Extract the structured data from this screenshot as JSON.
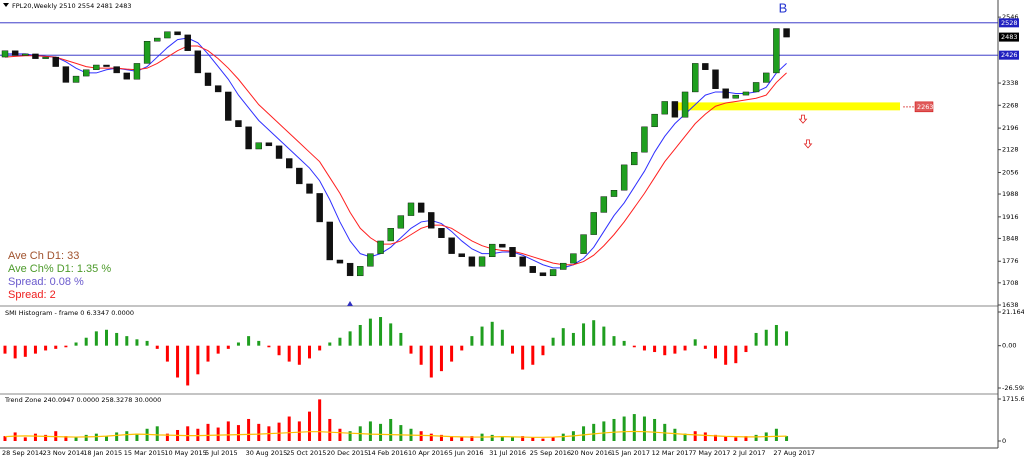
{
  "chart_data": [
    {
      "type": "candlestick",
      "title": "FPL20,Weekly  2510 2554 2481 2483",
      "categories": [
        "28 Sep 2014",
        null,
        null,
        null,
        "23 Nov 2014",
        null,
        null,
        null,
        "18 Jan 2015",
        null,
        null,
        null,
        "15 Mar 2015",
        null,
        null,
        null,
        "10 May 2015",
        null,
        null,
        null,
        "5 Jul 2015",
        null,
        null,
        null,
        "30 Aug 2015",
        null,
        null,
        null,
        "25 Oct 2015",
        null,
        null,
        null,
        "20 Dec 2015",
        null,
        null,
        null,
        "14 Feb 2016",
        null,
        null,
        null,
        "10 Apr 2016",
        null,
        null,
        null,
        "5 Jun 2016",
        null,
        null,
        null,
        "31 Jul 2016",
        null,
        null,
        null,
        "25 Sep 2016",
        null,
        null,
        null,
        "20 Nov 2016",
        null,
        null,
        null,
        "15 Jan 2017",
        null,
        null,
        null,
        "12 Mar 2017",
        null,
        null,
        null,
        "7 May 2017",
        null,
        null,
        null,
        "2 Jul 2017",
        null,
        null,
        null,
        "27 Aug 2017",
        null
      ],
      "open": [
        2420,
        2440,
        2425,
        2430,
        2415,
        2420,
        2390,
        2340,
        2360,
        2380,
        2395,
        2390,
        2370,
        2350,
        2400,
        2470,
        2480,
        2500,
        2490,
        2440,
        2370,
        2330,
        2310,
        2220,
        2200,
        2130,
        2150,
        2140,
        2100,
        2070,
        2020,
        1990,
        1900,
        1780,
        1770,
        1730,
        1760,
        1800,
        1840,
        1880,
        1920,
        1960,
        1930,
        1880,
        1850,
        1800,
        1790,
        1760,
        1790,
        1830,
        1820,
        1790,
        1760,
        1740,
        1730,
        1750,
        1770,
        1800,
        1860,
        1930,
        1980,
        2000,
        2080,
        2120,
        2200,
        2240,
        2280,
        2230,
        2310,
        2400,
        2380,
        2320,
        2290,
        2300,
        2310,
        2340,
        2370,
        2510
      ],
      "close": [
        2440,
        2425,
        2430,
        2415,
        2420,
        2390,
        2340,
        2360,
        2380,
        2395,
        2390,
        2370,
        2350,
        2400,
        2470,
        2480,
        2500,
        2490,
        2440,
        2370,
        2330,
        2310,
        2220,
        2200,
        2130,
        2150,
        2140,
        2100,
        2070,
        2020,
        1990,
        1900,
        1780,
        1770,
        1730,
        1760,
        1800,
        1840,
        1880,
        1920,
        1960,
        1930,
        1880,
        1850,
        1800,
        1790,
        1760,
        1790,
        1830,
        1820,
        1790,
        1760,
        1740,
        1730,
        1750,
        1770,
        1800,
        1860,
        1930,
        1980,
        2000,
        2080,
        2120,
        2200,
        2240,
        2280,
        2230,
        2310,
        2400,
        2380,
        2320,
        2290,
        2300,
        2310,
        2340,
        2370,
        2510,
        2483
      ],
      "up_color": "#1f9e1f",
      "down_color": "#111111",
      "lines": [
        {
          "color": "#3030ff",
          "values": [
            2430,
            2430,
            2430,
            2425,
            2422,
            2420,
            2405,
            2385,
            2370,
            2370,
            2380,
            2385,
            2380,
            2375,
            2390,
            2420,
            2450,
            2475,
            2480,
            2465,
            2430,
            2390,
            2350,
            2300,
            2260,
            2220,
            2190,
            2160,
            2130,
            2100,
            2070,
            2030,
            1970,
            1900,
            1840,
            1800,
            1790,
            1800,
            1820,
            1850,
            1880,
            1900,
            1905,
            1895,
            1870,
            1840,
            1815,
            1800,
            1800,
            1805,
            1805,
            1795,
            1780,
            1765,
            1755,
            1755,
            1765,
            1785,
            1820,
            1870,
            1920,
            1960,
            2010,
            2060,
            2120,
            2170,
            2210,
            2240,
            2270,
            2300,
            2310,
            2310,
            2305,
            2305,
            2310,
            2325,
            2370,
            2400
          ]
        },
        {
          "color": "#ff2020",
          "values": [
            2420,
            2422,
            2424,
            2424,
            2422,
            2420,
            2410,
            2400,
            2390,
            2385,
            2385,
            2385,
            2382,
            2380,
            2385,
            2400,
            2420,
            2440,
            2455,
            2455,
            2440,
            2415,
            2385,
            2350,
            2310,
            2270,
            2240,
            2210,
            2180,
            2150,
            2120,
            2090,
            2040,
            1990,
            1930,
            1880,
            1850,
            1830,
            1830,
            1840,
            1860,
            1880,
            1890,
            1890,
            1880,
            1860,
            1840,
            1825,
            1815,
            1810,
            1808,
            1800,
            1790,
            1780,
            1770,
            1765,
            1765,
            1775,
            1795,
            1825,
            1860,
            1900,
            1945,
            1990,
            2040,
            2090,
            2130,
            2170,
            2210,
            2240,
            2265,
            2275,
            2280,
            2285,
            2290,
            2300,
            2340,
            2370
          ]
        }
      ],
      "hlines": [
        {
          "value": 2528,
          "color": "#2020c0"
        },
        {
          "value": 2426,
          "color": "#2020c0"
        }
      ],
      "zone": {
        "low": 2252,
        "high": 2277,
        "label": 2263,
        "color": "#ffff00",
        "label_color": "#e05a5a"
      },
      "signals": [
        2221,
        2143
      ],
      "annotation": "B",
      "info": [
        {
          "text": "Ave Ch D1: 33",
          "color": "#a0522d"
        },
        {
          "text": "Ave Ch% D1: 1.35 %",
          "color": "#4c9a2a"
        },
        {
          "text": "Spread: 0.08 %",
          "color": "#6a5acd"
        },
        {
          "text": "Spread: 2",
          "color": "#ee2020"
        }
      ],
      "ylim": [
        1638,
        2600
      ],
      "yticks": [
        2546,
        2338,
        2268,
        2196,
        2128,
        2056,
        1988,
        1916,
        1848,
        1776,
        1708,
        1638
      ]
    },
    {
      "type": "bar",
      "title": "SMI Histogram - frame 0 6.3347 0.0000",
      "values": [
        -5,
        -8,
        -7,
        -5,
        -3,
        -2,
        -1,
        2,
        5,
        9,
        10,
        8,
        6,
        4,
        3,
        -2,
        -10,
        -20,
        -25,
        -18,
        -10,
        -5,
        -2,
        2,
        6,
        3,
        -1,
        -6,
        -10,
        -12,
        -8,
        -3,
        2,
        5,
        9,
        13,
        17,
        18,
        14,
        8,
        -5,
        -12,
        -20,
        -16,
        -10,
        -3,
        6,
        12,
        15,
        10,
        -5,
        -15,
        -12,
        -6,
        5,
        11,
        8,
        14,
        16,
        12,
        6,
        3,
        -1,
        -3,
        -4,
        -6,
        -5,
        -3,
        4,
        -2,
        -8,
        -12,
        -11,
        -4,
        8,
        10,
        13,
        9
      ],
      "pos_color": "#1f9e1f",
      "neg_color": "#ff0000",
      "ylim": [
        -26.5988,
        21.1645
      ],
      "yticks": [
        21.1645,
        {
          "value": 0,
          "label": "0.00"
        },
        -26.5988
      ]
    },
    {
      "type": "bar",
      "title": "Trend Zone 240.0947 0.0000 258.3278 30.0000",
      "series": [
        {
          "color": "#1f9e1f",
          "values": [
            null,
            null,
            null,
            null,
            null,
            null,
            null,
            150,
            250,
            300,
            200,
            350,
            400,
            300,
            500,
            600,
            null,
            null,
            null,
            null,
            null,
            null,
            null,
            null,
            null,
            null,
            null,
            null,
            null,
            null,
            null,
            null,
            null,
            null,
            400,
            600,
            800,
            700,
            900,
            650,
            500,
            null,
            null,
            null,
            null,
            null,
            null,
            300,
            250,
            200,
            150,
            null,
            null,
            null,
            null,
            300,
            400,
            600,
            700,
            800,
            900,
            1000,
            1100,
            1000,
            900,
            700,
            500,
            300,
            null,
            null,
            null,
            null,
            null,
            null,
            250,
            350,
            500,
            200
          ]
        },
        {
          "color": "#ff0000",
          "values": [
            200,
            350,
            150,
            300,
            250,
            400,
            200,
            null,
            null,
            null,
            null,
            null,
            null,
            null,
            null,
            null,
            300,
            450,
            600,
            500,
            700,
            550,
            800,
            650,
            900,
            700,
            600,
            750,
            1000,
            800,
            1200,
            1700,
            900,
            500,
            null,
            null,
            null,
            null,
            null,
            null,
            null,
            400,
            300,
            250,
            200,
            150,
            200,
            null,
            null,
            null,
            null,
            200,
            150,
            100,
            150,
            null,
            null,
            null,
            null,
            null,
            null,
            null,
            null,
            null,
            null,
            null,
            null,
            null,
            400,
            350,
            250,
            200,
            150,
            200,
            null,
            null,
            null,
            null
          ]
        },
        {
          "color": "#ffc000",
          "type": "line",
          "values": [
            180,
            200,
            210,
            200,
            190,
            180,
            170,
            160,
            170,
            180,
            200,
            230,
            260,
            280,
            270,
            250,
            240,
            230,
            220,
            220,
            230,
            240,
            250,
            260,
            270,
            280,
            300,
            320,
            340,
            360,
            380,
            380,
            360,
            340,
            320,
            300,
            280,
            270,
            260,
            250,
            240,
            230,
            220,
            200,
            180,
            170,
            160,
            160,
            170,
            180,
            170,
            160,
            150,
            150,
            160,
            180,
            210,
            250,
            290,
            330,
            360,
            380,
            390,
            380,
            360,
            330,
            300,
            270,
            250,
            230,
            210,
            190,
            180,
            170,
            170,
            180,
            190,
            200
          ]
        }
      ],
      "ylim": [
        0,
        1715.634
      ],
      "yticks": [
        1715.634,
        0
      ]
    }
  ]
}
